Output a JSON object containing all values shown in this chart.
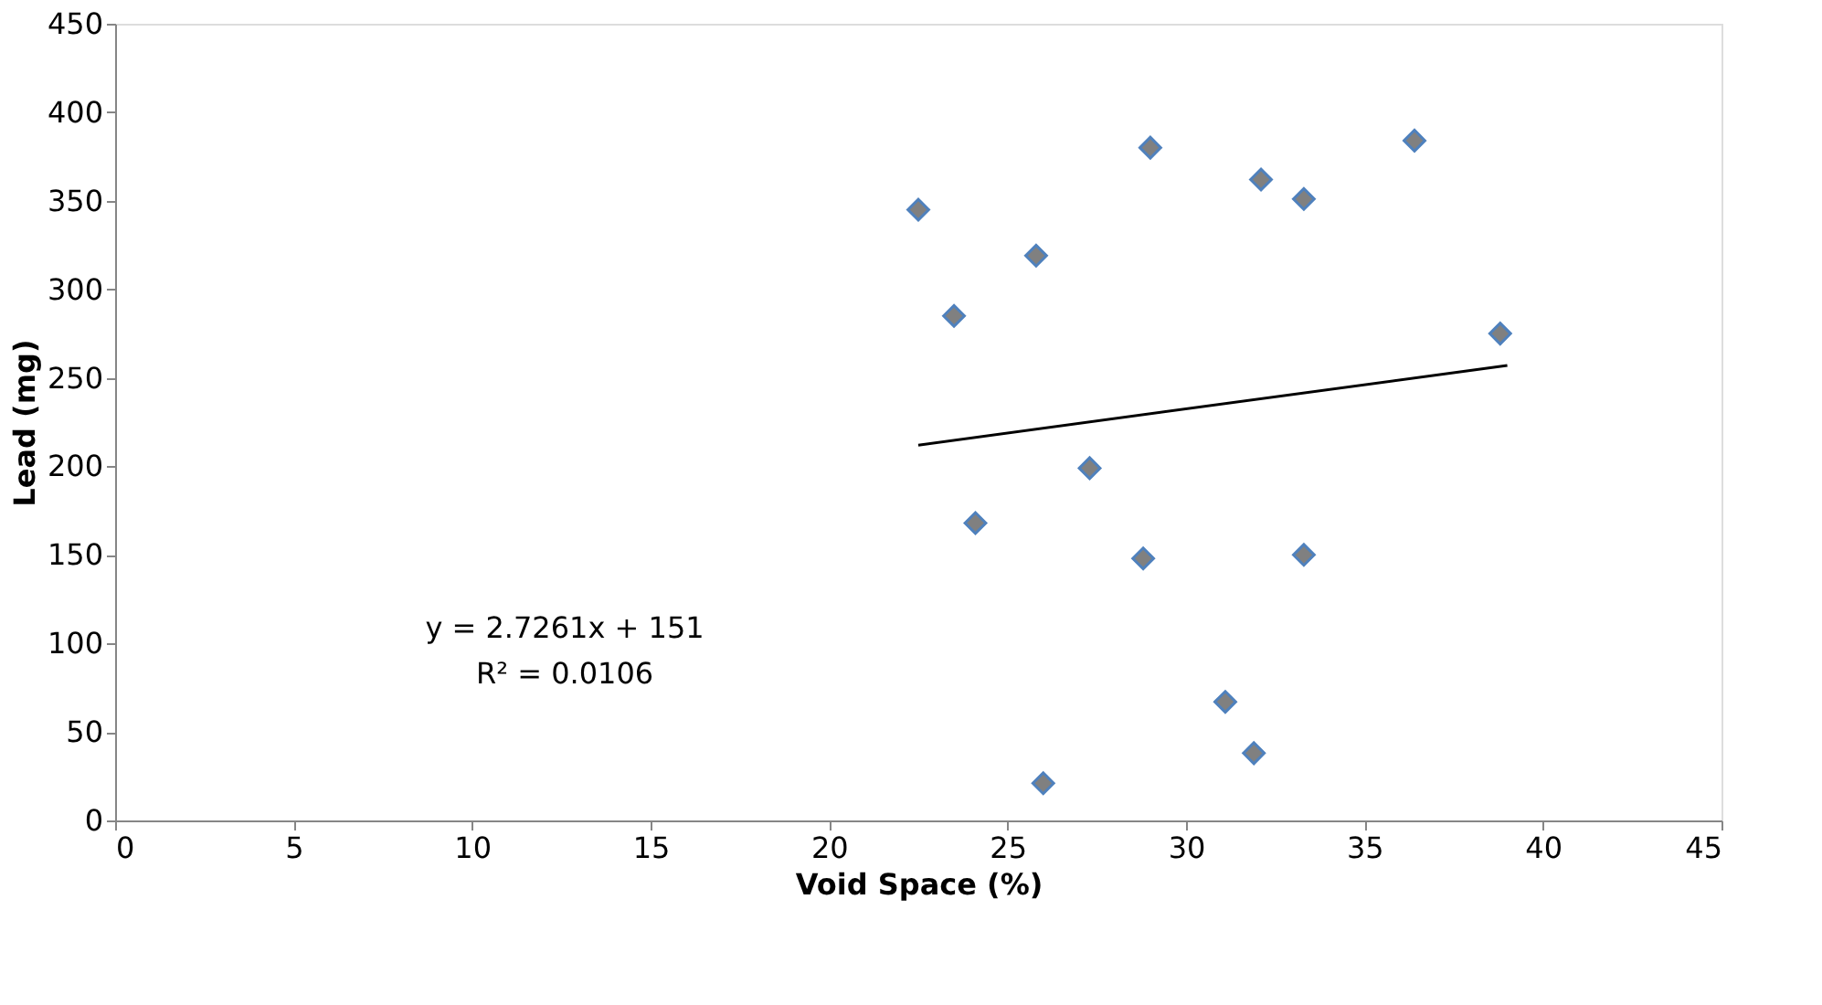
{
  "chart_data": {
    "type": "scatter",
    "xlabel": "Void Space (%)",
    "ylabel": "Lead (mg)",
    "xlim": [
      0,
      45
    ],
    "xticks": [
      0,
      5,
      10,
      15,
      20,
      25,
      30,
      35,
      40,
      45
    ],
    "ylim": [
      0,
      450
    ],
    "yticks": [
      0,
      50,
      100,
      150,
      200,
      250,
      300,
      350,
      400,
      450
    ],
    "grid": false,
    "marker": "diamond",
    "series": [
      {
        "color": "#808080",
        "x": [
          22.5,
          23.5,
          24.1,
          25.8,
          26.0,
          27.3,
          28.8,
          29.0,
          31.1,
          31.9,
          32.1,
          33.3,
          33.3,
          36.4,
          38.8
        ],
        "values": [
          345,
          285,
          168,
          319,
          21,
          199,
          148,
          380,
          67,
          38,
          362,
          351,
          150,
          384,
          275
        ]
      },
      {
        "type": "line",
        "marker": "none",
        "color": "#000000",
        "x": [
          22.5,
          39.0
        ],
        "values": [
          212,
          257
        ]
      }
    ],
    "annotations": [
      "y = 2.7261x + 151",
      "R² = 0.0106"
    ]
  }
}
